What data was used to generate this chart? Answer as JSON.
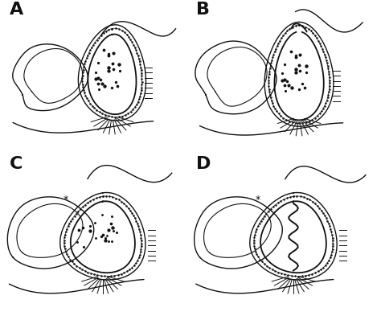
{
  "bg_color": "#ffffff",
  "line_color": "#111111",
  "label_fontsize": 16,
  "fig_width": 4.74,
  "fig_height": 3.93,
  "panels": [
    "A",
    "B",
    "C",
    "D"
  ]
}
